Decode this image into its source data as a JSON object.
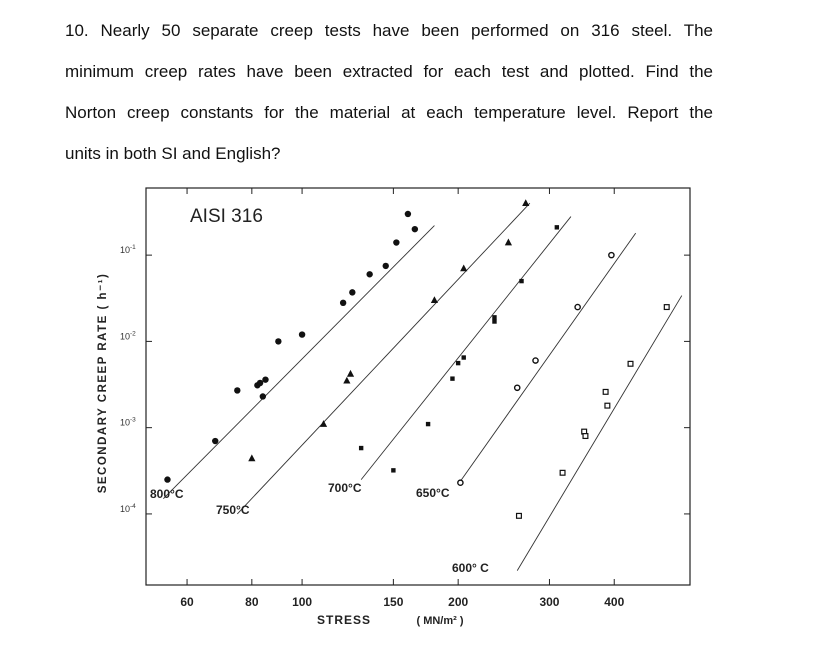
{
  "problem": {
    "lines": [
      "10. Nearly 50 separate creep tests have been performed on 316 steel. The",
      "minimum creep rates have been extracted for each test and plotted. Find the",
      "Norton creep constants for the material at each temperature level. Report the",
      "units in both SI and English?"
    ]
  },
  "chart_data": {
    "type": "scatter",
    "title": "AISI 316",
    "xlabel": "STRESS",
    "xunit": "( MN/m² )",
    "ylabel": "SECONDARY CREEP RATE ( h⁻¹)",
    "x_scale": "log",
    "y_scale": "log",
    "xlim": [
      50,
      560
    ],
    "ylim": [
      1.5e-05,
      0.6
    ],
    "x_ticks": [
      {
        "value": 60,
        "label": "60"
      },
      {
        "value": 80,
        "label": "80"
      },
      {
        "value": 100,
        "label": "100"
      },
      {
        "value": 150,
        "label": "150"
      },
      {
        "value": 200,
        "label": "200"
      },
      {
        "value": 300,
        "label": "300"
      },
      {
        "value": 400,
        "label": "400"
      }
    ],
    "y_ticks": [
      {
        "value": 0.1,
        "base": "10",
        "exp": "-1"
      },
      {
        "value": 0.01,
        "base": "10",
        "exp": "-2"
      },
      {
        "value": 0.001,
        "base": "10",
        "exp": "-3"
      },
      {
        "value": 0.0001,
        "base": "10",
        "exp": "-4"
      }
    ],
    "grid": false,
    "series": [
      {
        "name": "800°C",
        "marker": "filled-circle",
        "line": [
          [
            54,
            0.00015
          ],
          [
            180,
            0.22
          ]
        ],
        "x": [
          55,
          68,
          75,
          82,
          83,
          84,
          85,
          90,
          100,
          120,
          125,
          135,
          145,
          152,
          160,
          165
        ],
        "y": [
          0.00025,
          0.0007,
          0.0027,
          0.0031,
          0.0033,
          0.0023,
          0.0036,
          0.01,
          0.012,
          0.028,
          0.037,
          0.06,
          0.075,
          0.14,
          0.3,
          0.2
        ]
      },
      {
        "name": "750°C",
        "marker": "filled-triangle",
        "line": [
          [
            75,
            0.0001
          ],
          [
            275,
            0.4
          ]
        ],
        "x": [
          80,
          110,
          122,
          124,
          180,
          205,
          250,
          270
        ],
        "y": [
          0.00044,
          0.0011,
          0.0035,
          0.0042,
          0.03,
          0.07,
          0.14,
          0.4
        ]
      },
      {
        "name": "700°C",
        "marker": "filled-square",
        "line": [
          [
            130,
            0.00025
          ],
          [
            330,
            0.28
          ]
        ],
        "x": [
          130,
          150,
          175,
          195,
          200,
          205,
          235,
          235,
          265,
          310
        ],
        "y": [
          0.00058,
          0.00032,
          0.0011,
          0.0037,
          0.0056,
          0.0065,
          0.019,
          0.017,
          0.05,
          0.21
        ]
      },
      {
        "name": "650°C",
        "marker": "open-circle",
        "line": [
          [
            200,
            0.00022
          ],
          [
            440,
            0.18
          ]
        ],
        "x": [
          202,
          260,
          282,
          340,
          395
        ],
        "y": [
          0.00023,
          0.0029,
          0.006,
          0.025,
          0.1
        ]
      },
      {
        "name": "600°C",
        "marker": "open-square",
        "line": [
          [
            260,
            2.2e-05
          ],
          [
            540,
            0.034
          ]
        ],
        "x": [
          262,
          318,
          350,
          352,
          385,
          388,
          430,
          505
        ],
        "y": [
          9.5e-05,
          0.0003,
          0.0009,
          0.0008,
          0.0026,
          0.0018,
          0.0055,
          0.025
        ]
      }
    ],
    "labels": [
      {
        "text": "800°C"
      },
      {
        "text": "750°C"
      },
      {
        "text": "700°C"
      },
      {
        "text": "650°C"
      },
      {
        "text": "600° C"
      }
    ]
  }
}
